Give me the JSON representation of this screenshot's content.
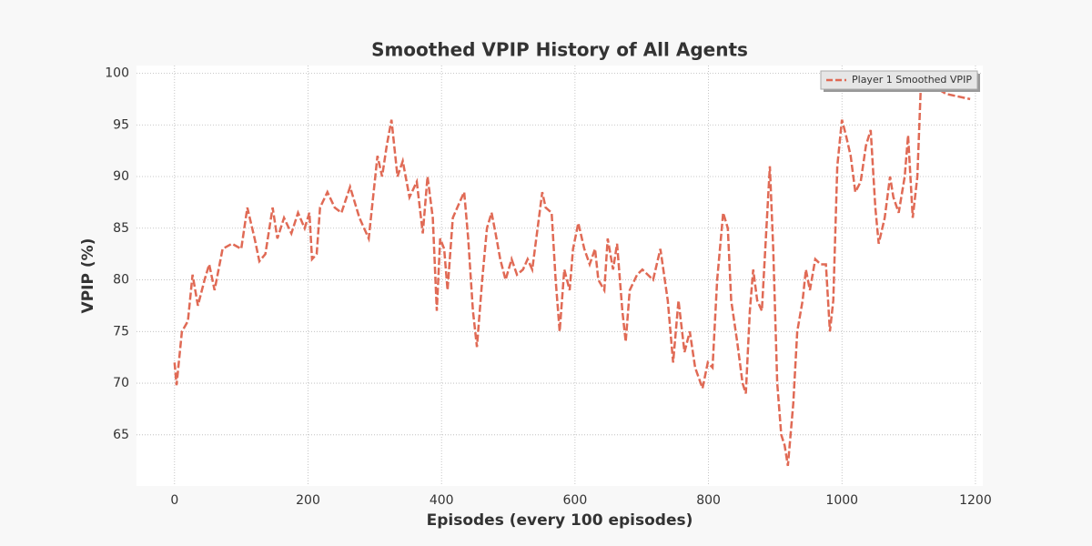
{
  "chart_data": {
    "type": "line",
    "title": "Smoothed VPIP History of All Agents",
    "x_label": "Episodes (every 100 episodes)",
    "y_label": "VPIP (%)",
    "xlim": [
      -57,
      1211
    ],
    "ylim": [
      60.05,
      100.75
    ],
    "xticks": [
      0,
      200,
      400,
      600,
      800,
      1000,
      1200
    ],
    "yticks": [
      65,
      70,
      75,
      80,
      85,
      90,
      95,
      100
    ],
    "grid": true,
    "legend": "upper right",
    "x": [
      0,
      3,
      11,
      20,
      27,
      35,
      45,
      52,
      60,
      72,
      86,
      100,
      109,
      120,
      127,
      136,
      147,
      154,
      164,
      175,
      185,
      195,
      202,
      206,
      213,
      218,
      229,
      240,
      250,
      263,
      277,
      291,
      304,
      311,
      318,
      325,
      334,
      342,
      352,
      363,
      372,
      379,
      387,
      393,
      398,
      404,
      409,
      417,
      427,
      434,
      440,
      447,
      453,
      461,
      468,
      475,
      481,
      488,
      496,
      505,
      513,
      522,
      529,
      536,
      545,
      551,
      556,
      565,
      571,
      577,
      584,
      592,
      597,
      605,
      614,
      622,
      630,
      635,
      644,
      649,
      657,
      663,
      671,
      676,
      682,
      693,
      701,
      709,
      717,
      728,
      739,
      747,
      755,
      764,
      772,
      780,
      791,
      799,
      806,
      813,
      822,
      829,
      834,
      843,
      851,
      856,
      862,
      867,
      873,
      880,
      886,
      892,
      897,
      903,
      909,
      914,
      919,
      927,
      933,
      941,
      946,
      952,
      960,
      968,
      976,
      982,
      987,
      993,
      1000,
      1006,
      1013,
      1020,
      1028,
      1036,
      1043,
      1050,
      1055,
      1064,
      1072,
      1077,
      1085,
      1094,
      1099,
      1106,
      1113,
      1118,
      1129,
      1143,
      1156,
      1192
    ],
    "series": [
      {
        "name": "Player 1 Smoothed VPIP",
        "color": "#e06a55",
        "values": [
          72,
          69.8,
          75,
          76,
          80.5,
          77.5,
          80,
          81.5,
          79,
          83,
          83.5,
          83,
          87,
          84,
          81.8,
          82.5,
          87,
          84,
          86,
          84.5,
          86.5,
          85,
          86.5,
          82,
          82.5,
          87,
          88.5,
          87,
          86.5,
          89,
          86,
          84,
          92,
          90,
          93,
          95.5,
          90,
          91.5,
          88,
          89.5,
          84.5,
          90,
          86,
          77,
          84,
          83,
          79,
          86,
          87.5,
          88.5,
          84,
          77,
          73.5,
          80,
          85,
          86.5,
          84.5,
          82,
          80,
          82,
          80.5,
          81,
          82,
          81,
          85.5,
          88.5,
          87,
          86.5,
          80,
          75,
          81,
          79,
          83,
          85.5,
          83,
          81.5,
          83,
          80,
          79,
          84,
          81,
          83.5,
          77,
          74,
          79,
          80.5,
          81,
          80.5,
          80,
          83,
          78,
          72,
          78,
          73,
          75,
          71.5,
          69.5,
          72,
          71.5,
          80,
          86.5,
          85,
          78,
          74,
          70,
          69,
          77,
          81,
          78,
          77,
          84,
          91,
          83,
          70,
          65,
          64,
          62,
          68,
          75,
          78,
          81,
          79,
          82,
          81.5,
          81.5,
          75,
          78,
          91,
          95.5,
          94,
          92,
          88.5,
          89.5,
          93,
          94.5,
          87,
          83.5,
          86,
          90,
          88,
          86.5,
          90,
          94,
          86,
          90,
          98.5,
          98.5,
          98.5,
          98,
          97.5
        ]
      }
    ]
  }
}
